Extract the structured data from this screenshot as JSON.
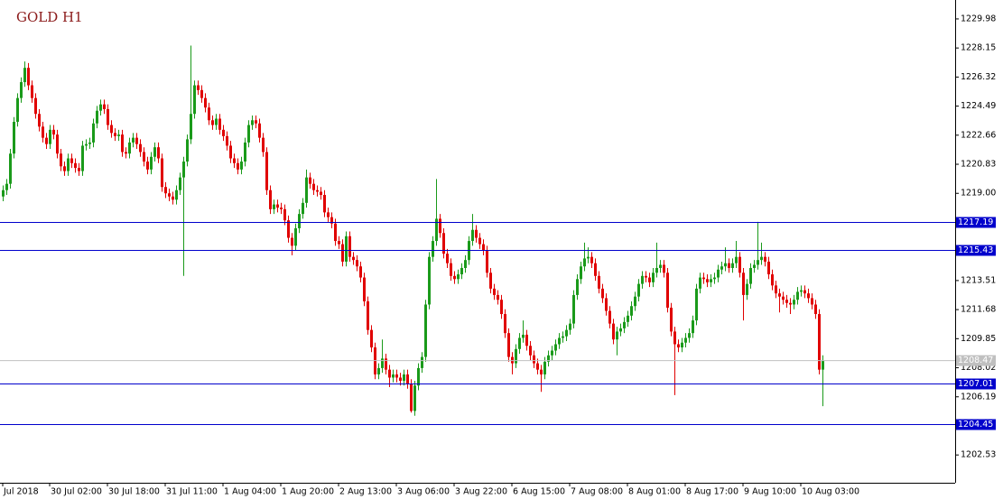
{
  "chart_data": {
    "type": "candlestick",
    "title": "GOLD H1",
    "up_color": "#1a9a1a",
    "down_color": "#e00000",
    "level_color": "#0000cc",
    "price_color": "#c0c0c0",
    "xlim": [
      -0.75,
      263.75
    ],
    "ylim": [
      1200.78,
      1231.17
    ],
    "xticks": [
      {
        "value": 0,
        "label": "Jul 2018"
      },
      {
        "value": 13,
        "label": "30 Jul 02:00"
      },
      {
        "value": 29,
        "label": "30 Jul 18:00"
      },
      {
        "value": 45,
        "label": "31 Jul 11:00"
      },
      {
        "value": 61,
        "label": "1 Aug 04:00"
      },
      {
        "value": 77,
        "label": "1 Aug 20:00"
      },
      {
        "value": 93,
        "label": "2 Aug 13:00"
      },
      {
        "value": 109,
        "label": "3 Aug 06:00"
      },
      {
        "value": 125,
        "label": "3 Aug 22:00"
      },
      {
        "value": 141,
        "label": "6 Aug 15:00"
      },
      {
        "value": 157,
        "label": "7 Aug 08:00"
      },
      {
        "value": 173,
        "label": "8 Aug 01:00"
      },
      {
        "value": 189,
        "label": "8 Aug 17:00"
      },
      {
        "value": 205,
        "label": "9 Aug 10:00"
      },
      {
        "value": 221,
        "label": "10 Aug 03:00"
      }
    ],
    "yticks": [
      1229.98,
      1228.15,
      1226.32,
      1224.49,
      1222.66,
      1220.83,
      {
        "value": 1219,
        "label": "1219.00"
      },
      1213.51,
      1211.68,
      1209.85,
      1208.02,
      1206.19,
      1202.53
    ],
    "levels": [
      1217.19,
      1215.43,
      1207.01,
      1204.45
    ],
    "ohlc": [
      [
        1218.8,
        1219.5,
        1218.5,
        1219.2
      ],
      [
        1219.2,
        1219.9,
        1218.9,
        1219.6
      ],
      [
        1219.6,
        1221.8,
        1219.3,
        1221.5
      ],
      [
        1221.5,
        1223.8,
        1221.2,
        1223.5
      ],
      [
        1223.5,
        1225.3,
        1223.2,
        1225.0
      ],
      [
        1225.0,
        1226.3,
        1224.7,
        1226.0
      ],
      [
        1226.0,
        1227.3,
        1225.7,
        1226.9
      ],
      [
        1226.9,
        1227.2,
        1225.5,
        1225.8
      ],
      [
        1225.8,
        1226.1,
        1224.7,
        1225.0
      ],
      [
        1225.0,
        1225.3,
        1223.7,
        1224.0
      ],
      [
        1224.0,
        1224.3,
        1222.9,
        1223.2
      ],
      [
        1223.2,
        1223.5,
        1222.2,
        1222.5
      ],
      [
        1222.5,
        1222.8,
        1221.8,
        1222.1
      ],
      [
        1222.1,
        1223.3,
        1221.8,
        1223.0
      ],
      [
        1223.0,
        1223.3,
        1222.4,
        1222.7
      ],
      [
        1222.7,
        1223.0,
        1221.2,
        1221.5
      ],
      [
        1221.5,
        1221.8,
        1220.4,
        1220.7
      ],
      [
        1220.7,
        1221.0,
        1220.1,
        1220.4
      ],
      [
        1220.4,
        1221.5,
        1220.1,
        1221.2
      ],
      [
        1221.2,
        1221.5,
        1220.6,
        1220.9
      ],
      [
        1220.9,
        1221.2,
        1220.3,
        1220.6
      ],
      [
        1220.6,
        1220.9,
        1220.1,
        1220.4
      ],
      [
        1220.4,
        1222.3,
        1220.1,
        1222.0
      ],
      [
        1222.0,
        1222.4,
        1221.7,
        1222.1
      ],
      [
        1222.1,
        1222.5,
        1221.8,
        1222.2
      ],
      [
        1222.2,
        1223.7,
        1221.9,
        1223.4
      ],
      [
        1223.4,
        1224.5,
        1223.1,
        1224.2
      ],
      [
        1224.2,
        1224.9,
        1223.9,
        1224.6
      ],
      [
        1224.6,
        1224.9,
        1224.0,
        1224.3
      ],
      [
        1224.3,
        1224.6,
        1223.0,
        1223.3
      ],
      [
        1223.3,
        1223.6,
        1222.5,
        1222.8
      ],
      [
        1222.8,
        1223.1,
        1222.3,
        1222.6
      ],
      [
        1222.6,
        1223.0,
        1222.3,
        1222.7
      ],
      [
        1222.7,
        1223.0,
        1221.3,
        1221.6
      ],
      [
        1221.6,
        1221.9,
        1221.2,
        1221.5
      ],
      [
        1221.5,
        1222.5,
        1221.2,
        1222.2
      ],
      [
        1222.2,
        1222.8,
        1221.9,
        1222.5
      ],
      [
        1222.5,
        1222.8,
        1221.8,
        1222.1
      ],
      [
        1222.1,
        1222.4,
        1221.3,
        1221.6
      ],
      [
        1221.6,
        1221.9,
        1220.7,
        1221.0
      ],
      [
        1221.0,
        1221.3,
        1220.2,
        1220.5
      ],
      [
        1220.5,
        1221.6,
        1220.2,
        1221.3
      ],
      [
        1221.3,
        1222.2,
        1221.0,
        1221.9
      ],
      [
        1221.9,
        1222.2,
        1220.9,
        1221.2
      ],
      [
        1221.2,
        1221.5,
        1219.1,
        1219.4
      ],
      [
        1219.4,
        1219.7,
        1218.7,
        1219.0
      ],
      [
        1219.0,
        1219.3,
        1218.5,
        1218.8
      ],
      [
        1218.8,
        1219.1,
        1218.3,
        1218.6
      ],
      [
        1218.6,
        1219.5,
        1218.3,
        1219.2
      ],
      [
        1219.2,
        1220.3,
        1218.9,
        1220.0
      ],
      [
        1220.0,
        1221.3,
        1213.8,
        1221.0
      ],
      [
        1221.0,
        1222.7,
        1220.7,
        1222.4
      ],
      [
        1222.4,
        1228.3,
        1222.1,
        1224.0
      ],
      [
        1224.0,
        1226.1,
        1223.7,
        1225.8
      ],
      [
        1225.8,
        1226.1,
        1225.2,
        1225.5
      ],
      [
        1225.5,
        1225.8,
        1224.7,
        1225.0
      ],
      [
        1225.0,
        1225.3,
        1224.1,
        1224.4
      ],
      [
        1224.4,
        1224.7,
        1223.3,
        1223.6
      ],
      [
        1223.6,
        1223.9,
        1223.0,
        1223.3
      ],
      [
        1223.3,
        1224.0,
        1223.0,
        1223.7
      ],
      [
        1223.7,
        1224.0,
        1222.7,
        1223.0
      ],
      [
        1223.0,
        1223.3,
        1222.3,
        1222.6
      ],
      [
        1222.6,
        1222.9,
        1221.7,
        1222.0
      ],
      [
        1222.0,
        1222.3,
        1220.9,
        1221.2
      ],
      [
        1221.2,
        1221.5,
        1220.6,
        1220.9
      ],
      [
        1220.9,
        1221.2,
        1220.2,
        1220.5
      ],
      [
        1220.5,
        1221.3,
        1220.2,
        1221.0
      ],
      [
        1221.0,
        1222.5,
        1220.7,
        1222.2
      ],
      [
        1222.2,
        1223.6,
        1221.9,
        1223.3
      ],
      [
        1223.3,
        1223.9,
        1223.0,
        1223.6
      ],
      [
        1223.6,
        1223.9,
        1223.1,
        1223.4
      ],
      [
        1223.4,
        1223.7,
        1222.2,
        1222.5
      ],
      [
        1222.5,
        1222.8,
        1221.3,
        1221.6
      ],
      [
        1221.6,
        1221.9,
        1218.9,
        1219.2
      ],
      [
        1219.2,
        1219.5,
        1217.7,
        1218.0
      ],
      [
        1218.0,
        1218.6,
        1217.7,
        1218.3
      ],
      [
        1218.3,
        1218.6,
        1217.8,
        1218.1
      ],
      [
        1218.1,
        1218.4,
        1217.7,
        1218.0
      ],
      [
        1218.0,
        1218.3,
        1217.0,
        1217.3
      ],
      [
        1217.3,
        1217.6,
        1215.9,
        1216.2
      ],
      [
        1216.2,
        1216.5,
        1215.1,
        1215.7
      ],
      [
        1215.7,
        1217.1,
        1215.4,
        1216.8
      ],
      [
        1216.8,
        1218.0,
        1216.5,
        1217.7
      ],
      [
        1217.7,
        1218.7,
        1217.4,
        1218.4
      ],
      [
        1218.4,
        1220.5,
        1218.1,
        1220.0
      ],
      [
        1220.0,
        1220.3,
        1219.3,
        1219.6
      ],
      [
        1219.6,
        1219.9,
        1218.9,
        1219.2
      ],
      [
        1219.2,
        1219.5,
        1218.8,
        1219.1
      ],
      [
        1219.1,
        1219.4,
        1218.6,
        1218.9
      ],
      [
        1218.9,
        1219.2,
        1217.5,
        1217.8
      ],
      [
        1217.8,
        1218.1,
        1217.2,
        1217.5
      ],
      [
        1217.5,
        1217.8,
        1216.8,
        1217.1
      ],
      [
        1217.1,
        1217.4,
        1215.7,
        1216.0
      ],
      [
        1216.0,
        1216.3,
        1215.5,
        1215.8
      ],
      [
        1215.8,
        1216.1,
        1214.4,
        1214.7
      ],
      [
        1214.7,
        1216.6,
        1214.4,
        1216.3
      ],
      [
        1216.3,
        1216.6,
        1214.7,
        1215.0
      ],
      [
        1215.0,
        1215.3,
        1214.5,
        1214.8
      ],
      [
        1214.8,
        1215.1,
        1214.1,
        1214.4
      ],
      [
        1214.4,
        1214.7,
        1213.4,
        1213.7
      ],
      [
        1213.7,
        1214.0,
        1211.9,
        1212.2
      ],
      [
        1212.2,
        1212.5,
        1210.1,
        1210.4
      ],
      [
        1210.4,
        1210.7,
        1209.0,
        1209.3
      ],
      [
        1209.3,
        1209.6,
        1207.3,
        1207.6
      ],
      [
        1207.6,
        1208.3,
        1207.3,
        1208.0
      ],
      [
        1208.0,
        1209.8,
        1207.7,
        1208.6
      ],
      [
        1208.6,
        1208.9,
        1207.6,
        1207.9
      ],
      [
        1207.9,
        1208.2,
        1206.8,
        1207.4
      ],
      [
        1207.4,
        1207.9,
        1207.1,
        1207.6
      ],
      [
        1207.6,
        1207.9,
        1207.1,
        1207.4
      ],
      [
        1207.4,
        1207.7,
        1206.9,
        1207.2
      ],
      [
        1207.2,
        1207.9,
        1206.9,
        1207.6
      ],
      [
        1207.6,
        1207.9,
        1206.7,
        1207.0
      ],
      [
        1207.0,
        1207.3,
        1205.2,
        1205.3
      ],
      [
        1205.3,
        1207.2,
        1205.0,
        1206.9
      ],
      [
        1206.9,
        1208.3,
        1206.6,
        1208.0
      ],
      [
        1208.0,
        1209.0,
        1207.7,
        1208.7
      ],
      [
        1208.7,
        1212.3,
        1208.4,
        1212.0
      ],
      [
        1212.0,
        1215.3,
        1211.7,
        1215.0
      ],
      [
        1215.0,
        1216.3,
        1214.7,
        1216.0
      ],
      [
        1216.0,
        1219.9,
        1215.7,
        1217.4
      ],
      [
        1217.4,
        1217.7,
        1216.2,
        1216.5
      ],
      [
        1216.5,
        1216.8,
        1214.9,
        1215.2
      ],
      [
        1215.2,
        1215.5,
        1214.3,
        1214.6
      ],
      [
        1214.6,
        1214.9,
        1213.5,
        1213.8
      ],
      [
        1213.8,
        1214.1,
        1213.3,
        1213.6
      ],
      [
        1213.6,
        1214.2,
        1213.3,
        1213.9
      ],
      [
        1213.9,
        1214.6,
        1213.6,
        1214.3
      ],
      [
        1214.3,
        1215.1,
        1214.0,
        1214.8
      ],
      [
        1214.8,
        1216.3,
        1214.5,
        1216.0
      ],
      [
        1216.0,
        1217.7,
        1215.7,
        1216.7
      ],
      [
        1216.7,
        1217.0,
        1215.9,
        1216.2
      ],
      [
        1216.2,
        1216.5,
        1215.5,
        1215.8
      ],
      [
        1215.8,
        1216.1,
        1215.1,
        1215.4
      ],
      [
        1215.4,
        1215.7,
        1213.7,
        1214.0
      ],
      [
        1214.0,
        1214.3,
        1212.7,
        1213.0
      ],
      [
        1213.0,
        1213.3,
        1212.3,
        1212.6
      ],
      [
        1212.6,
        1212.9,
        1212.0,
        1212.3
      ],
      [
        1212.3,
        1212.6,
        1211.1,
        1211.4
      ],
      [
        1211.4,
        1211.7,
        1209.9,
        1210.2
      ],
      [
        1210.2,
        1210.5,
        1208.4,
        1208.7
      ],
      [
        1208.7,
        1209.0,
        1207.6,
        1208.3
      ],
      [
        1208.3,
        1209.5,
        1208.0,
        1209.2
      ],
      [
        1209.2,
        1210.2,
        1208.9,
        1209.9
      ],
      [
        1209.9,
        1211.0,
        1209.6,
        1210.1
      ],
      [
        1210.1,
        1210.4,
        1209.1,
        1209.4
      ],
      [
        1209.4,
        1209.7,
        1208.5,
        1208.8
      ],
      [
        1208.8,
        1209.1,
        1208.0,
        1208.3
      ],
      [
        1208.3,
        1208.6,
        1207.6,
        1207.9
      ],
      [
        1207.9,
        1208.2,
        1206.5,
        1207.6
      ],
      [
        1207.6,
        1208.7,
        1207.3,
        1208.4
      ],
      [
        1208.4,
        1209.1,
        1208.1,
        1208.8
      ],
      [
        1208.8,
        1209.4,
        1208.5,
        1209.1
      ],
      [
        1209.1,
        1209.8,
        1208.8,
        1209.5
      ],
      [
        1209.5,
        1210.2,
        1209.2,
        1209.9
      ],
      [
        1209.9,
        1210.3,
        1209.6,
        1210.0
      ],
      [
        1210.0,
        1210.7,
        1209.7,
        1210.4
      ],
      [
        1210.4,
        1211.1,
        1210.1,
        1210.8
      ],
      [
        1210.8,
        1212.9,
        1210.5,
        1212.6
      ],
      [
        1212.6,
        1213.9,
        1212.3,
        1213.6
      ],
      [
        1213.6,
        1214.7,
        1213.3,
        1214.4
      ],
      [
        1214.4,
        1215.9,
        1214.1,
        1214.9
      ],
      [
        1214.9,
        1215.6,
        1214.6,
        1215.0
      ],
      [
        1215.0,
        1215.3,
        1214.3,
        1214.6
      ],
      [
        1214.6,
        1214.9,
        1213.5,
        1213.8
      ],
      [
        1213.8,
        1214.1,
        1212.7,
        1213.0
      ],
      [
        1213.0,
        1213.3,
        1212.1,
        1212.4
      ],
      [
        1212.4,
        1212.7,
        1211.3,
        1211.6
      ],
      [
        1211.6,
        1211.9,
        1210.5,
        1210.8
      ],
      [
        1210.8,
        1211.1,
        1209.5,
        1209.8
      ],
      [
        1209.8,
        1210.6,
        1208.8,
        1210.3
      ],
      [
        1210.3,
        1210.8,
        1210.0,
        1210.5
      ],
      [
        1210.5,
        1211.2,
        1210.2,
        1210.9
      ],
      [
        1210.9,
        1211.6,
        1210.6,
        1211.3
      ],
      [
        1211.3,
        1212.2,
        1211.0,
        1211.9
      ],
      [
        1211.9,
        1212.8,
        1211.6,
        1212.5
      ],
      [
        1212.5,
        1213.6,
        1212.2,
        1213.3
      ],
      [
        1213.3,
        1214.1,
        1213.0,
        1213.8
      ],
      [
        1213.8,
        1214.1,
        1213.4,
        1213.7
      ],
      [
        1213.7,
        1214.0,
        1213.1,
        1213.4
      ],
      [
        1213.4,
        1214.3,
        1213.1,
        1214.0
      ],
      [
        1214.0,
        1215.9,
        1213.7,
        1214.3
      ],
      [
        1214.3,
        1214.8,
        1214.0,
        1214.5
      ],
      [
        1214.5,
        1214.8,
        1213.7,
        1214.0
      ],
      [
        1214.0,
        1214.3,
        1211.5,
        1211.8
      ],
      [
        1211.8,
        1212.1,
        1210.0,
        1210.3
      ],
      [
        1210.3,
        1210.6,
        1206.3,
        1209.5
      ],
      [
        1209.5,
        1209.8,
        1209.0,
        1209.3
      ],
      [
        1209.3,
        1209.9,
        1209.0,
        1209.6
      ],
      [
        1209.6,
        1210.2,
        1209.3,
        1209.9
      ],
      [
        1209.9,
        1210.5,
        1209.6,
        1210.2
      ],
      [
        1210.2,
        1211.3,
        1209.9,
        1211.0
      ],
      [
        1211.0,
        1213.3,
        1210.7,
        1213.0
      ],
      [
        1213.0,
        1214.0,
        1212.7,
        1213.7
      ],
      [
        1213.7,
        1214.0,
        1213.3,
        1213.6
      ],
      [
        1213.6,
        1213.9,
        1213.1,
        1213.4
      ],
      [
        1213.4,
        1213.9,
        1213.1,
        1213.6
      ],
      [
        1213.6,
        1214.0,
        1213.3,
        1213.7
      ],
      [
        1213.7,
        1214.5,
        1213.4,
        1214.2
      ],
      [
        1214.2,
        1214.7,
        1213.9,
        1214.4
      ],
      [
        1214.4,
        1215.6,
        1214.1,
        1214.6
      ],
      [
        1214.6,
        1214.9,
        1214.0,
        1214.3
      ],
      [
        1214.3,
        1214.9,
        1214.0,
        1214.6
      ],
      [
        1214.6,
        1216.0,
        1214.3,
        1215.0
      ],
      [
        1215.0,
        1215.3,
        1213.7,
        1214.0
      ],
      [
        1214.0,
        1214.3,
        1211.0,
        1212.6
      ],
      [
        1212.6,
        1213.6,
        1212.3,
        1213.3
      ],
      [
        1213.3,
        1214.6,
        1213.0,
        1214.3
      ],
      [
        1214.3,
        1214.8,
        1214.0,
        1214.5
      ],
      [
        1214.5,
        1217.2,
        1214.2,
        1214.8
      ],
      [
        1214.8,
        1215.9,
        1214.5,
        1215.0
      ],
      [
        1215.0,
        1215.3,
        1214.4,
        1214.7
      ],
      [
        1214.7,
        1215.0,
        1213.6,
        1213.9
      ],
      [
        1213.9,
        1214.2,
        1212.9,
        1213.2
      ],
      [
        1213.2,
        1213.5,
        1212.4,
        1212.7
      ],
      [
        1212.7,
        1213.0,
        1211.5,
        1212.5
      ],
      [
        1212.5,
        1212.8,
        1212.0,
        1212.3
      ],
      [
        1212.3,
        1212.6,
        1211.8,
        1212.1
      ],
      [
        1212.1,
        1212.4,
        1211.4,
        1212.0
      ],
      [
        1212.0,
        1212.6,
        1211.7,
        1212.3
      ],
      [
        1212.3,
        1213.1,
        1212.0,
        1212.8
      ],
      [
        1212.8,
        1213.2,
        1212.5,
        1212.9
      ],
      [
        1212.9,
        1213.2,
        1212.4,
        1212.7
      ],
      [
        1212.7,
        1213.0,
        1212.1,
        1212.4
      ],
      [
        1212.4,
        1212.7,
        1211.7,
        1212.0
      ],
      [
        1212.0,
        1212.3,
        1211.1,
        1211.4
      ],
      [
        1211.4,
        1211.7,
        1207.6,
        1207.9
      ],
      [
        1207.9,
        1208.8,
        1205.6,
        1208.47
      ]
    ]
  }
}
